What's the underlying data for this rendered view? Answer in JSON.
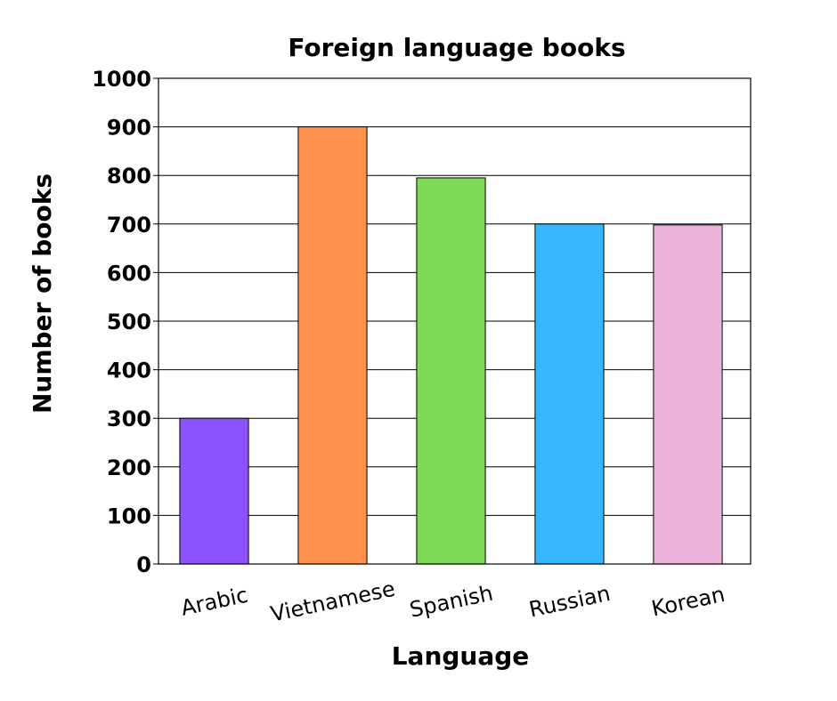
{
  "chart_data": {
    "type": "bar",
    "title": "Foreign language books",
    "xlabel": "Language",
    "ylabel": "Number of books",
    "categories": [
      "Arabic",
      "Vietnamese",
      "Spanish",
      "Russian",
      "Korean"
    ],
    "values": [
      300,
      900,
      795,
      700,
      698
    ],
    "colors": [
      "#8c52ff",
      "#ff914d",
      "#7ed957",
      "#38b6ff",
      "#ecb3da"
    ],
    "ylim": [
      0,
      1000
    ],
    "yticks": [
      0,
      100,
      200,
      300,
      400,
      500,
      600,
      700,
      800,
      900,
      1000
    ],
    "grid": true,
    "legend": "none"
  }
}
